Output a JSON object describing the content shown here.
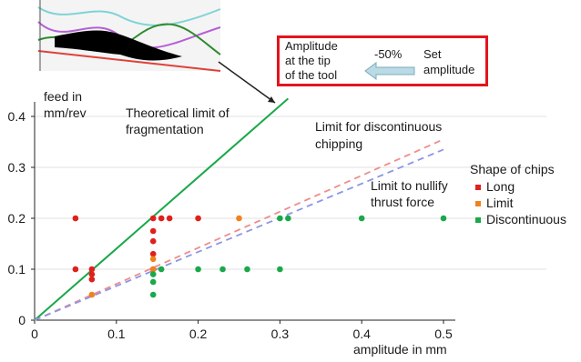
{
  "chart_data": {
    "type": "scatter",
    "title": "",
    "xlabel": "amplitude in mm",
    "ylabel_line1": "feed in",
    "ylabel_line2": "mm/rev",
    "xlim": [
      0,
      0.5
    ],
    "ylim": [
      0,
      0.4
    ],
    "xticks": [
      "0",
      "0.1",
      "0.2",
      "0.3",
      "0.4",
      "0.5"
    ],
    "yticks": [
      "0",
      "0.1",
      "0.2",
      "0.3",
      "0.4"
    ],
    "grid": "horizontal",
    "series": [
      {
        "name": "Long",
        "color": "#e0201c",
        "points": [
          [
            0.05,
            0.2
          ],
          [
            0.05,
            0.1
          ],
          [
            0.07,
            0.1
          ],
          [
            0.07,
            0.09
          ],
          [
            0.07,
            0.08
          ],
          [
            0.145,
            0.2
          ],
          [
            0.145,
            0.175
          ],
          [
            0.145,
            0.155
          ],
          [
            0.145,
            0.13
          ],
          [
            0.145,
            0.1
          ],
          [
            0.155,
            0.2
          ],
          [
            0.165,
            0.2
          ],
          [
            0.2,
            0.2
          ]
        ]
      },
      {
        "name": "Limit",
        "color": "#f0821e",
        "points": [
          [
            0.07,
            0.05
          ],
          [
            0.145,
            0.12
          ],
          [
            0.145,
            0.1
          ],
          [
            0.25,
            0.2
          ]
        ]
      },
      {
        "name": "Discontinuous",
        "color": "#1aa84a",
        "points": [
          [
            0.145,
            0.09
          ],
          [
            0.145,
            0.075
          ],
          [
            0.145,
            0.05
          ],
          [
            0.155,
            0.1
          ],
          [
            0.2,
            0.1
          ],
          [
            0.23,
            0.1
          ],
          [
            0.26,
            0.1
          ],
          [
            0.3,
            0.1
          ],
          [
            0.3,
            0.2
          ],
          [
            0.31,
            0.2
          ],
          [
            0.4,
            0.2
          ],
          [
            0.5,
            0.2
          ]
        ]
      }
    ],
    "lines": [
      {
        "label": "Theoretical limit of fragmentation",
        "color": "#1aa84a",
        "style": "solid",
        "from": [
          0,
          0
        ],
        "to": [
          0.31,
          0.435
        ]
      },
      {
        "label": "Limit for discontinuous chipping",
        "color": "#f08c8c",
        "style": "dashed",
        "from": [
          0,
          0
        ],
        "to": [
          0.5,
          0.355
        ]
      },
      {
        "label": "Limit to nullify thrust force",
        "color": "#8c96e6",
        "style": "dashed",
        "from": [
          0,
          0
        ],
        "to": [
          0.5,
          0.335
        ]
      }
    ],
    "annotations": {
      "theoretical_line1": "Theoretical limit of",
      "theoretical_line2": "fragmentation",
      "discontinuous_line1": "Limit for discontinuous",
      "discontinuous_line2": "chipping",
      "thrust_line1": "Limit to nullify",
      "thrust_line2": "thrust force"
    },
    "legend": {
      "title": "Shape of chips",
      "placement": "right"
    }
  },
  "callout": {
    "amplitude_line1": "Amplitude",
    "amplitude_line2": "at the tip",
    "amplitude_line3": "of the tool",
    "percent": "-50%",
    "set_line1": "Set",
    "set_line2": "amplitude",
    "border_color": "#e3141d",
    "arrow_color": "#b8dbe6"
  }
}
